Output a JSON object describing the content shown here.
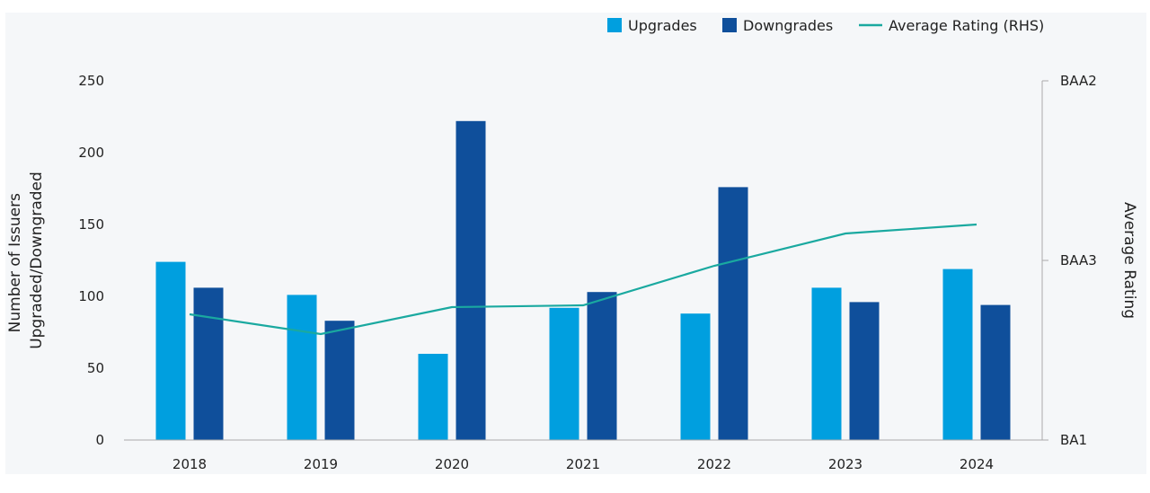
{
  "chart_data": {
    "type": "bar",
    "categories": [
      "2018",
      "2019",
      "2020",
      "2021",
      "2022",
      "2023",
      "2024"
    ],
    "series": [
      {
        "name": "Upgrades",
        "type": "bar",
        "axis": "left",
        "color": "#009fdf",
        "values": [
          124,
          101,
          60,
          92,
          88,
          106,
          119
        ]
      },
      {
        "name": "Downgrades",
        "type": "bar",
        "axis": "left",
        "color": "#0f4f9b",
        "values": [
          106,
          83,
          222,
          103,
          176,
          96,
          94
        ]
      },
      {
        "name": "Average Rating (RHS)",
        "type": "line",
        "axis": "right",
        "color": "#1aa9a0",
        "values": [
          0.7,
          0.59,
          0.74,
          0.75,
          0.97,
          1.15,
          1.2
        ]
      }
    ],
    "y_left": {
      "title_lines": [
        "Number of Issuers",
        "Upgraded/Downgraded"
      ],
      "min": 0,
      "max": 250,
      "ticks": [
        0,
        50,
        100,
        150,
        200,
        250
      ]
    },
    "y_right": {
      "title": "Average Rating",
      "min": 0,
      "max": 2,
      "ticks": [
        {
          "value": 0,
          "label": "BA1"
        },
        {
          "value": 1,
          "label": "BAA3"
        },
        {
          "value": 2,
          "label": "BAA2"
        }
      ]
    },
    "legend": {
      "position": "top-right"
    },
    "grid": false
  }
}
